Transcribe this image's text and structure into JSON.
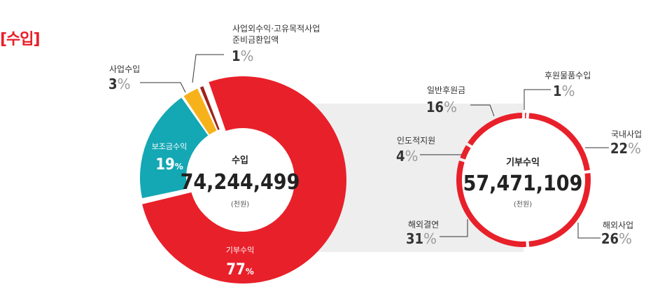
{
  "section_title": "[수입]",
  "chart_data": [
    {
      "type": "pie",
      "variant": "donut",
      "center": {
        "title": "수입",
        "value": "74,244,499",
        "unit": "(천원)"
      },
      "slices": [
        {
          "label": "기부수익",
          "value": 77,
          "color": "#e8202a",
          "label_inside": true
        },
        {
          "label": "보조금수익",
          "value": 19,
          "color": "#14a7b4",
          "label_inside": true
        },
        {
          "label": "사업수입",
          "value": 3,
          "color": "#f7b21b",
          "label_inside": false
        },
        {
          "label": "사업외수익·고유목적사업 준비금환입액",
          "label_lines": [
            "사업외수익·고유목적사업",
            "준비금환입액"
          ],
          "value": 1,
          "color": "#a0221d",
          "label_inside": false
        }
      ]
    },
    {
      "type": "pie",
      "variant": "ring",
      "center": {
        "title": "기부수익",
        "value": "57,471,109",
        "unit": "(천원)"
      },
      "slices": [
        {
          "label": "후원물품수입",
          "value": 1,
          "color": "#e8202a"
        },
        {
          "label": "국내사업",
          "value": 22,
          "color": "#e8202a"
        },
        {
          "label": "해외사업",
          "value": 26,
          "color": "#e8202a"
        },
        {
          "label": "해외결연",
          "value": 31,
          "color": "#e8202a"
        },
        {
          "label": "인도적지원",
          "value": 4,
          "color": "#e8202a"
        },
        {
          "label": "일반후원금",
          "value": 16,
          "color": "#e8202a"
        }
      ]
    }
  ]
}
